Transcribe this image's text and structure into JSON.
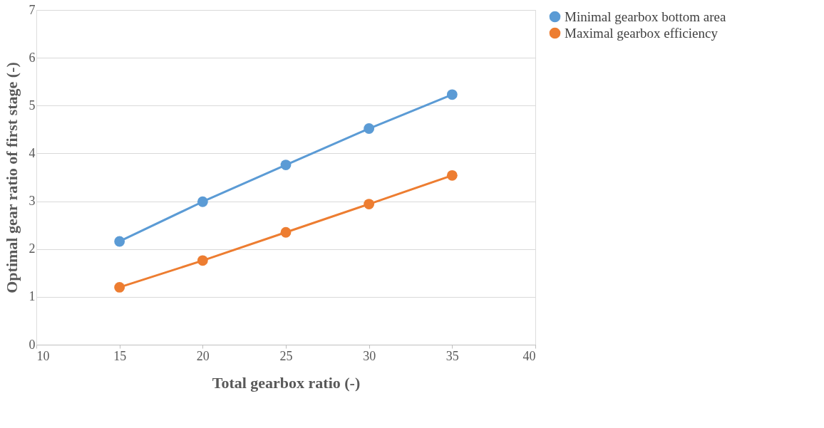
{
  "chart_data": {
    "type": "line",
    "xlabel": "Total gearbox ratio (-)",
    "ylabel": "Optimal gear ratio of first stage (-)",
    "x": [
      15,
      20,
      25,
      30,
      35
    ],
    "series": [
      {
        "name": "Minimal gearbox bottom area",
        "color": "#5b9bd5",
        "values": [
          2.16,
          2.99,
          3.76,
          4.52,
          5.23
        ]
      },
      {
        "name": "Maximal gearbox efficiency",
        "color": "#ed7d31",
        "values": [
          1.2,
          1.76,
          2.35,
          2.94,
          3.54
        ]
      }
    ],
    "xlim": [
      10,
      40
    ],
    "xticks": [
      10,
      15,
      20,
      25,
      30,
      35,
      40
    ],
    "ylim": [
      0,
      7
    ],
    "yticks": [
      0,
      1,
      2,
      3,
      4,
      5,
      6,
      7
    ],
    "grid": "y",
    "legend": "right",
    "marker": "circle",
    "line_style": "solid"
  }
}
